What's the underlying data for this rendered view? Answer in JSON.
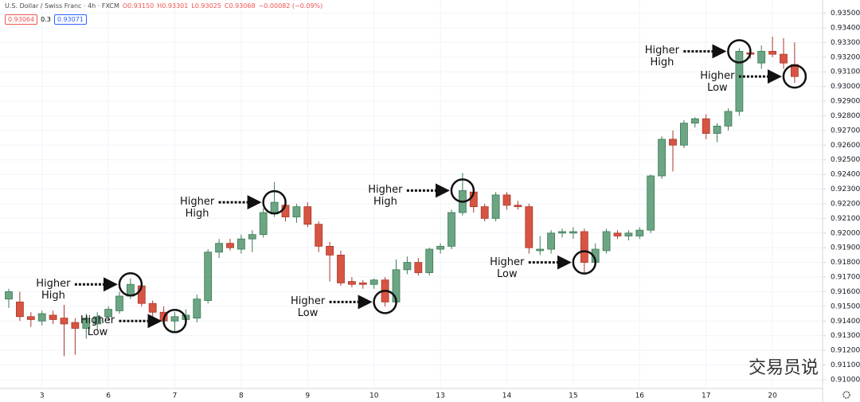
{
  "chart_data": {
    "type": "candlestick",
    "title": "U.S. Dollar / Swiss Franc · 4h · FXCM",
    "ohlc_legend": [
      "O0.93150",
      "H0.93301",
      "L0.93025",
      "C0.93068",
      "−0.00082 (−0.09%)"
    ],
    "price_boxes": [
      "0.93064",
      "0.3",
      "0.93071"
    ],
    "watermark": "交易员说",
    "up_color": "#6ba583",
    "down_color": "#d75442",
    "grid": true,
    "ylim": [
      0.9094,
      0.9359
    ],
    "yticks": [
      {
        "value": 0.91,
        "label": "0.91000"
      },
      {
        "value": 0.911,
        "label": "0.91100"
      },
      {
        "value": 0.912,
        "label": "0.91200"
      },
      {
        "value": 0.913,
        "label": "0.91300"
      },
      {
        "value": 0.914,
        "label": "0.91400"
      },
      {
        "value": 0.915,
        "label": "0.91500"
      },
      {
        "value": 0.916,
        "label": "0.91600"
      },
      {
        "value": 0.917,
        "label": "0.91700"
      },
      {
        "value": 0.918,
        "label": "0.91800"
      },
      {
        "value": 0.919,
        "label": "0.91900"
      },
      {
        "value": 0.92,
        "label": "0.92000"
      },
      {
        "value": 0.921,
        "label": "0.92100"
      },
      {
        "value": 0.922,
        "label": "0.92200"
      },
      {
        "value": 0.923,
        "label": "0.92300"
      },
      {
        "value": 0.924,
        "label": "0.92400"
      },
      {
        "value": 0.925,
        "label": "0.92500"
      },
      {
        "value": 0.926,
        "label": "0.92600"
      },
      {
        "value": 0.927,
        "label": "0.92700"
      },
      {
        "value": 0.928,
        "label": "0.92800"
      },
      {
        "value": 0.929,
        "label": "0.92900"
      },
      {
        "value": 0.93,
        "label": "0.93000"
      },
      {
        "value": 0.931,
        "label": "0.93100"
      },
      {
        "value": 0.932,
        "label": "0.93200"
      },
      {
        "value": 0.933,
        "label": "0.93300"
      },
      {
        "value": 0.934,
        "label": "0.93400"
      },
      {
        "value": 0.935,
        "label": "0.93500"
      }
    ],
    "categories": [
      null,
      null,
      null,
      "3",
      null,
      null,
      null,
      null,
      null,
      "6",
      null,
      null,
      null,
      null,
      null,
      "7",
      null,
      null,
      null,
      null,
      null,
      "8",
      null,
      null,
      null,
      null,
      null,
      "9",
      null,
      null,
      null,
      null,
      null,
      "10",
      null,
      null,
      null,
      null,
      null,
      "13",
      null,
      null,
      null,
      null,
      null,
      "14",
      null,
      null,
      null,
      null,
      null,
      "15",
      null,
      null,
      null,
      null,
      null,
      "16",
      null,
      null,
      null,
      null,
      null,
      "17",
      null,
      null,
      null,
      null,
      null,
      "20",
      null,
      null
    ],
    "open": [
      0.9155,
      0.9153,
      0.9143,
      0.914,
      0.9144,
      0.9142,
      0.9139,
      0.9135,
      0.9138,
      0.9143,
      0.9147,
      0.9157,
      0.9164,
      0.9152,
      0.9146,
      0.914,
      0.9141,
      0.9142,
      0.9154,
      0.9187,
      0.9193,
      0.9189,
      0.9196,
      0.9199,
      0.9213,
      0.9219,
      0.9211,
      0.9218,
      0.9206,
      0.9191,
      0.9185,
      0.9167,
      0.9166,
      0.9165,
      0.9168,
      0.9153,
      0.9175,
      0.918,
      0.9173,
      0.9189,
      0.9191,
      0.9214,
      0.9228,
      0.9218,
      0.921,
      0.9226,
      0.9219,
      0.9218,
      0.9188,
      0.9189,
      0.92,
      0.92,
      0.9201,
      0.918,
      0.9188,
      0.92,
      0.9198,
      0.9198,
      0.9202,
      0.9239,
      0.9264,
      0.926,
      0.9275,
      0.9278,
      0.9268,
      0.9273,
      0.9283,
      0.9323,
      0.9316,
      0.9324,
      0.9322,
      0.9315
    ],
    "high": [
      0.9162,
      0.916,
      0.9146,
      0.9147,
      0.9147,
      0.9151,
      0.9142,
      0.9145,
      0.9146,
      0.915,
      0.916,
      0.9169,
      0.9166,
      0.9154,
      0.915,
      0.9146,
      0.9148,
      0.9158,
      0.9189,
      0.9196,
      0.9196,
      0.9199,
      0.9202,
      0.9217,
      0.9235,
      0.9222,
      0.922,
      0.9221,
      0.9208,
      0.9194,
      0.9188,
      0.917,
      0.9168,
      0.9169,
      0.917,
      0.9182,
      0.9184,
      0.9183,
      0.919,
      0.9193,
      0.9216,
      0.9241,
      0.9231,
      0.922,
      0.9228,
      0.9228,
      0.9222,
      0.922,
      0.9198,
      0.9202,
      0.9203,
      0.9204,
      0.9203,
      0.9193,
      0.9203,
      0.9202,
      0.9202,
      0.9204,
      0.924,
      0.9266,
      0.927,
      0.9277,
      0.9279,
      0.9281,
      0.9275,
      0.9285,
      0.9326,
      0.9326,
      0.9328,
      0.9334,
      0.9333,
      0.93301
    ],
    "low": [
      0.9149,
      0.914,
      0.9136,
      0.9137,
      0.9138,
      0.9116,
      0.9117,
      0.9128,
      0.9134,
      0.914,
      0.9145,
      0.9155,
      0.915,
      0.9143,
      0.9138,
      0.9132,
      0.9137,
      0.9139,
      0.9152,
      0.9183,
      0.9188,
      0.9186,
      0.9187,
      0.9197,
      0.9211,
      0.9208,
      0.9207,
      0.9204,
      0.9187,
      0.9167,
      0.9164,
      0.9163,
      0.9162,
      0.9162,
      0.915,
      0.9151,
      0.9172,
      0.9171,
      0.9171,
      0.9186,
      0.9189,
      0.9212,
      0.9214,
      0.9208,
      0.9208,
      0.9216,
      0.9216,
      0.9186,
      0.9185,
      0.9186,
      0.9197,
      0.9196,
      0.9173,
      0.9177,
      0.9186,
      0.9196,
      0.9195,
      0.9196,
      0.92,
      0.9237,
      0.9242,
      0.9258,
      0.9272,
      0.9264,
      0.9262,
      0.927,
      0.928,
      0.9319,
      0.9312,
      0.932,
      0.9312,
      0.93025
    ],
    "close": [
      0.916,
      0.9143,
      0.9141,
      0.9145,
      0.9141,
      0.9138,
      0.9135,
      0.9142,
      0.9143,
      0.9148,
      0.9157,
      0.9165,
      0.9152,
      0.9146,
      0.914,
      0.9143,
      0.9144,
      0.9155,
      0.9187,
      0.9193,
      0.919,
      0.9196,
      0.9199,
      0.9214,
      0.9221,
      0.9211,
      0.9218,
      0.9206,
      0.9191,
      0.9185,
      0.9166,
      0.9165,
      0.9165,
      0.9168,
      0.9153,
      0.9175,
      0.918,
      0.9173,
      0.9189,
      0.9191,
      0.9214,
      0.9229,
      0.9218,
      0.921,
      0.9226,
      0.9219,
      0.9218,
      0.919,
      0.9189,
      0.92,
      0.9201,
      0.9201,
      0.918,
      0.9189,
      0.9201,
      0.9198,
      0.92,
      0.9202,
      0.9239,
      0.9264,
      0.926,
      0.9275,
      0.9278,
      0.9268,
      0.9273,
      0.9283,
      0.9324,
      0.9322,
      0.9324,
      0.9322,
      0.9316,
      0.93068
    ],
    "annotations": [
      {
        "text": "Higher High"
      },
      {
        "text": "Higher Low"
      },
      {
        "text": "Higher High"
      },
      {
        "text": "Higher Low"
      },
      {
        "text": "Higher High"
      },
      {
        "text": "Higher Low"
      },
      {
        "text": "Higher High"
      },
      {
        "text": "Higher Low"
      }
    ]
  }
}
